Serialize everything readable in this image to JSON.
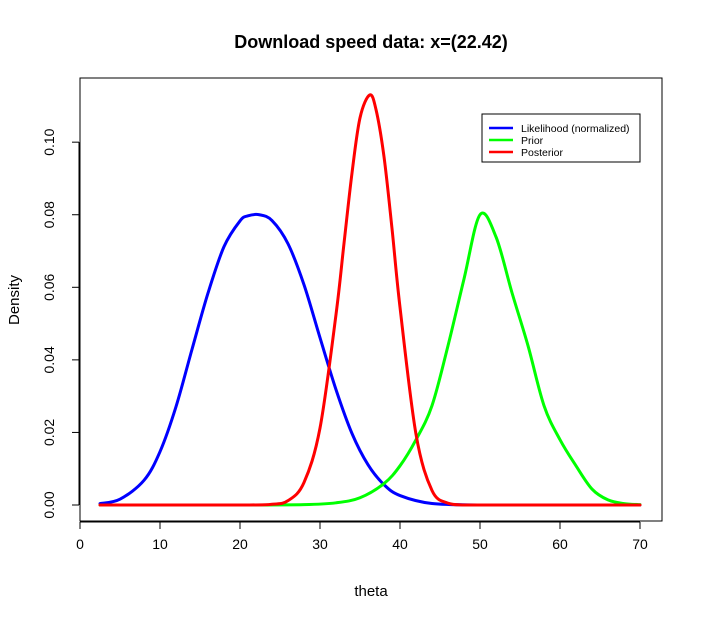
{
  "chart_data": {
    "type": "line",
    "title": "Download speed data: x=(22.42)",
    "xlabel": "theta",
    "ylabel": "Density",
    "xlim": [
      2.5,
      70
    ],
    "ylim": [
      0,
      0.113
    ],
    "xticks": [
      0,
      10,
      20,
      30,
      40,
      50,
      60,
      70
    ],
    "yticks": [
      0.0,
      0.02,
      0.04,
      0.06,
      0.08,
      0.1
    ],
    "ytick_labels": [
      "0.00",
      "0.02",
      "0.04",
      "0.06",
      "0.08",
      "0.10"
    ],
    "grid": false,
    "legend_position": "top-right",
    "series": [
      {
        "name": "Likelihood (normalized)",
        "color": "#0000ff",
        "x": [
          2.5,
          5,
          8,
          10,
          12,
          14,
          16,
          18,
          20,
          21,
          22.42,
          24,
          26,
          28,
          30,
          32,
          34,
          36,
          38,
          40,
          44,
          50,
          60,
          70
        ],
        "y": [
          0.0004,
          0.0016,
          0.0068,
          0.0147,
          0.0271,
          0.0429,
          0.0584,
          0.0712,
          0.0783,
          0.0797,
          0.08,
          0.0784,
          0.072,
          0.0607,
          0.0461,
          0.0318,
          0.0197,
          0.0111,
          0.0056,
          0.0026,
          0.0004,
          0.0,
          0.0,
          0.0
        ]
      },
      {
        "name": "Prior",
        "color": "#00ff00",
        "x": [
          2.5,
          20,
          28,
          32,
          35,
          38,
          40,
          42,
          44,
          46,
          48,
          50,
          52,
          54,
          56,
          58,
          60,
          62,
          64,
          66,
          68,
          70
        ],
        "y": [
          0.0,
          0.0,
          0.0001,
          0.0006,
          0.002,
          0.0059,
          0.0108,
          0.018,
          0.0274,
          0.0439,
          0.0623,
          0.08,
          0.0739,
          0.0585,
          0.0439,
          0.0274,
          0.018,
          0.0108,
          0.0044,
          0.0014,
          0.0004,
          0.0001
        ]
      },
      {
        "name": "Posterior",
        "color": "#ff0000",
        "x": [
          2.5,
          20,
          24,
          26,
          28,
          30,
          32,
          33,
          34,
          35,
          36.21,
          37,
          38,
          39,
          40,
          42,
          44,
          46,
          48,
          52,
          60,
          70
        ],
        "y": [
          0.0,
          0.0,
          0.0002,
          0.0012,
          0.0062,
          0.0212,
          0.0525,
          0.0721,
          0.0915,
          0.1067,
          0.113,
          0.109,
          0.096,
          0.0762,
          0.0545,
          0.0195,
          0.004,
          0.0005,
          0.0,
          0.0,
          0.0,
          0.0
        ]
      }
    ]
  }
}
